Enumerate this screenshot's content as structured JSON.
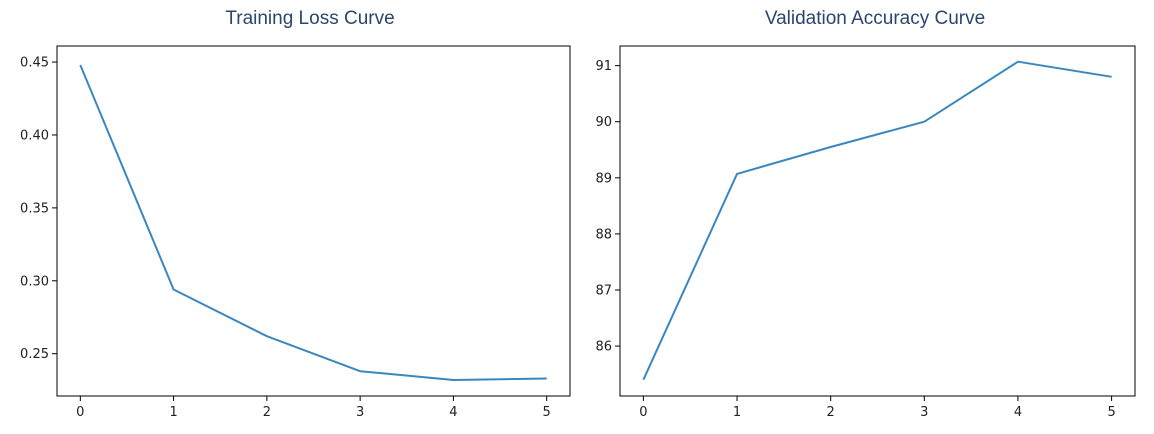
{
  "chart_data": [
    {
      "type": "line",
      "title": "Training Loss Curve",
      "xlabel": "",
      "ylabel": "",
      "x": [
        0,
        1,
        2,
        3,
        4,
        5
      ],
      "series": [
        {
          "values": [
            0.448,
            0.294,
            0.262,
            0.238,
            0.232,
            0.233
          ],
          "color": "#3a87c0"
        }
      ],
      "xlim": [
        -0.25,
        5.25
      ],
      "ylim": [
        0.221,
        0.461
      ],
      "xticks": [
        0,
        1,
        2,
        3,
        4,
        5
      ],
      "xtick_labels": [
        "0",
        "1",
        "2",
        "3",
        "4",
        "5"
      ],
      "yticks": [
        0.25,
        0.3,
        0.35,
        0.4,
        0.45
      ],
      "ytick_labels": [
        "0.25",
        "0.30",
        "0.35",
        "0.40",
        "0.45"
      ],
      "grid": false
    },
    {
      "type": "line",
      "title": "Validation Accuracy Curve",
      "xlabel": "",
      "ylabel": "",
      "x": [
        0,
        1,
        2,
        3,
        4,
        5
      ],
      "series": [
        {
          "values": [
            85.4,
            89.07,
            89.55,
            90.0,
            91.07,
            90.8
          ],
          "color": "#3a87c0"
        }
      ],
      "xlim": [
        -0.25,
        5.25
      ],
      "ylim": [
        85.11,
        91.35
      ],
      "xticks": [
        0,
        1,
        2,
        3,
        4,
        5
      ],
      "xtick_labels": [
        "0",
        "1",
        "2",
        "3",
        "4",
        "5"
      ],
      "yticks": [
        86,
        87,
        88,
        89,
        90,
        91
      ],
      "ytick_labels": [
        "86",
        "87",
        "88",
        "89",
        "90",
        "91"
      ],
      "grid": false
    }
  ]
}
